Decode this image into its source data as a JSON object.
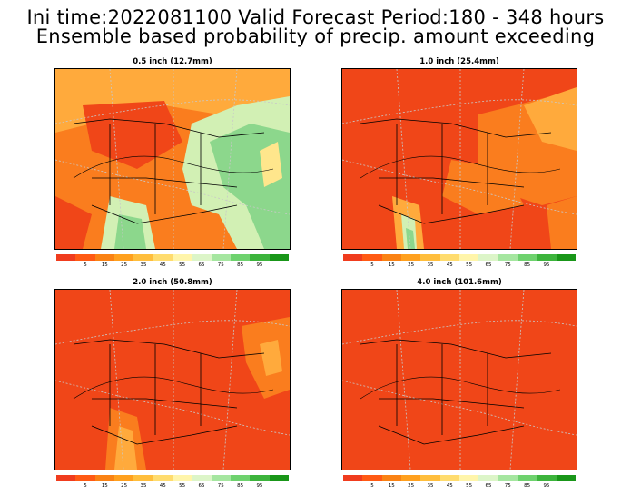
{
  "header": {
    "line1": "Ini time:2022081100  Valid Forecast Period:180 - 348 hours",
    "line2": "Ensemble based probability of precip. amount exceeding"
  },
  "panels": [
    {
      "title": "0.5 inch (12.7mm)"
    },
    {
      "title": "1.0 inch (25.4mm)"
    },
    {
      "title": "2.0 inch (50.8mm)"
    },
    {
      "title": "4.0 inch (101.6mm)"
    }
  ],
  "colorbar": {
    "colors": [
      "#f03c1e",
      "#ff5a14",
      "#fa8214",
      "#ffa01e",
      "#ffbe3c",
      "#ffdc6e",
      "#fff5aa",
      "#dcf5c8",
      "#a5e6a0",
      "#6ed26e",
      "#3cb43c",
      "#199619"
    ],
    "labels": [
      "5",
      "15",
      "25",
      "35",
      "45",
      "55",
      "65",
      "75",
      "85",
      "95"
    ]
  },
  "colors": {
    "red": "#f04618",
    "orange": "#fa7d1e",
    "light_orange": "#ffaa3c",
    "yellow": "#ffe68c",
    "pale_green": "#d2f0b4",
    "green": "#8cd78c",
    "dark_green": "#46b446"
  }
}
